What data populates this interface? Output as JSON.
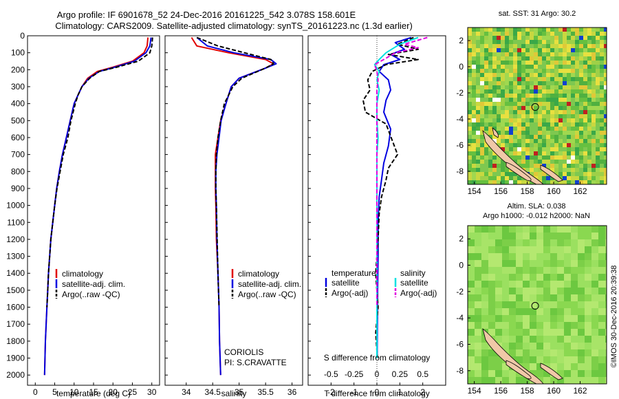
{
  "header": {
    "line1": "Argo profile: IF 6901678_52 24-Dec-2016 20161225_542 3.078S 158.601E",
    "line2": "Climatology: CARS2009. Satellite-adjusted climatology: synTS_20161223.nc (1.3d earlier)"
  },
  "side_stamp": "©IMOS 30-Dec-2016 20:39:38",
  "colors": {
    "climatology": "#e00000",
    "satellite": "#0000e0",
    "argo": "#000000",
    "sal_satellite": "#00e0e0",
    "sal_argo": "#e000e0",
    "zero_line": "#000000"
  },
  "chart_data": [
    {
      "type": "line",
      "title": "",
      "xlabel": "temperature (deg C)",
      "ylabel": "",
      "xlim": [
        -2,
        32
      ],
      "ylim": [
        2060,
        0
      ],
      "xticks": [
        0,
        5,
        10,
        15,
        20,
        25,
        30
      ],
      "yticks": [
        0,
        100,
        200,
        300,
        400,
        500,
        600,
        700,
        800,
        900,
        1000,
        1100,
        1200,
        1300,
        1400,
        1500,
        1600,
        1700,
        1800,
        1900,
        2000
      ],
      "legend": [
        "climatology",
        "satellite-adj. clim.",
        "Argo(..raw -QC)"
      ],
      "series": [
        {
          "name": "climatology",
          "color": "climatology",
          "dash": "none",
          "points": [
            [
              29.0,
              10
            ],
            [
              28.8,
              60
            ],
            [
              28.0,
              100
            ],
            [
              25.0,
              150
            ],
            [
              20.0,
              185
            ],
            [
              16.0,
              210
            ],
            [
              13.5,
              250
            ],
            [
              12.0,
              300
            ],
            [
              11.0,
              350
            ],
            [
              10.0,
              400
            ],
            [
              9.0,
              500
            ],
            [
              8.0,
              600
            ],
            [
              7.0,
              700
            ],
            [
              6.2,
              800
            ],
            [
              5.5,
              900
            ],
            [
              5.0,
              1000
            ],
            [
              4.5,
              1100
            ],
            [
              4.0,
              1200
            ],
            [
              3.7,
              1300
            ],
            [
              3.4,
              1400
            ],
            [
              3.2,
              1500
            ],
            [
              3.0,
              1600
            ],
            [
              2.8,
              1700
            ],
            [
              2.6,
              1800
            ],
            [
              2.5,
              1900
            ],
            [
              2.4,
              2000
            ]
          ]
        },
        {
          "name": "satellite-adj. clim.",
          "color": "satellite",
          "dash": "none",
          "points": [
            [
              29.8,
              10
            ],
            [
              29.5,
              60
            ],
            [
              28.5,
              100
            ],
            [
              25.5,
              150
            ],
            [
              20.5,
              185
            ],
            [
              16.5,
              210
            ],
            [
              13.8,
              250
            ],
            [
              12.0,
              300
            ],
            [
              11.0,
              350
            ],
            [
              10.0,
              400
            ],
            [
              9.0,
              500
            ],
            [
              8.0,
              600
            ],
            [
              7.0,
              700
            ],
            [
              6.2,
              800
            ],
            [
              5.5,
              900
            ],
            [
              5.0,
              1000
            ],
            [
              4.5,
              1100
            ],
            [
              4.0,
              1200
            ],
            [
              3.7,
              1300
            ],
            [
              3.4,
              1400
            ],
            [
              3.2,
              1500
            ],
            [
              3.0,
              1600
            ],
            [
              2.8,
              1700
            ],
            [
              2.6,
              1800
            ],
            [
              2.5,
              1900
            ],
            [
              2.4,
              2000
            ]
          ]
        },
        {
          "name": "Argo(..raw -QC)",
          "color": "argo",
          "dash": "6,3",
          "points": [
            [
              30.2,
              10
            ],
            [
              30.0,
              60
            ],
            [
              29.5,
              100
            ],
            [
              26.5,
              150
            ],
            [
              21.0,
              185
            ],
            [
              16.5,
              210
            ],
            [
              14.0,
              250
            ],
            [
              12.0,
              300
            ],
            [
              11.0,
              350
            ],
            [
              10.3,
              400
            ],
            [
              9.2,
              500
            ],
            [
              8.4,
              600
            ],
            [
              7.2,
              700
            ],
            [
              6.4,
              800
            ],
            [
              5.6,
              900
            ],
            [
              5.0,
              1000
            ],
            [
              4.5,
              1100
            ],
            [
              4.0,
              1200
            ],
            [
              3.7,
              1300
            ],
            [
              3.4,
              1400
            ],
            [
              3.2,
              1500
            ],
            [
              3.0,
              1600
            ]
          ]
        }
      ]
    },
    {
      "type": "line",
      "title": "",
      "xlabel": "salinity",
      "ylabel": "",
      "xlim": [
        33.6,
        36.2
      ],
      "ylim": [
        2060,
        0
      ],
      "xticks": [
        34,
        34.5,
        35,
        35.5,
        36
      ],
      "xticklabels": [
        "34",
        "34.5",
        "35",
        "35.5",
        "36"
      ],
      "legend": [
        "climatology",
        "satellite-adj. clim.",
        "Argo(..raw -QC)"
      ],
      "annotations": [
        "CORIOLIS",
        "PI: S.CRAVATTE"
      ],
      "series": [
        {
          "name": "climatology",
          "color": "climatology",
          "dash": "none",
          "points": [
            [
              34.1,
              10
            ],
            [
              34.2,
              60
            ],
            [
              34.8,
              100
            ],
            [
              35.5,
              140
            ],
            [
              35.65,
              165
            ],
            [
              35.5,
              190
            ],
            [
              35.0,
              250
            ],
            [
              34.85,
              300
            ],
            [
              34.75,
              400
            ],
            [
              34.65,
              500
            ],
            [
              34.6,
              600
            ],
            [
              34.55,
              700
            ],
            [
              34.55,
              800
            ],
            [
              34.55,
              900
            ],
            [
              34.56,
              1000
            ],
            [
              34.57,
              1200
            ],
            [
              34.6,
              1400
            ],
            [
              34.62,
              1600
            ],
            [
              34.63,
              1800
            ],
            [
              34.65,
              2000
            ]
          ]
        },
        {
          "name": "satellite-adj. clim.",
          "color": "satellite",
          "dash": "none",
          "points": [
            [
              34.2,
              10
            ],
            [
              34.4,
              60
            ],
            [
              34.9,
              100
            ],
            [
              35.6,
              140
            ],
            [
              35.7,
              165
            ],
            [
              35.5,
              190
            ],
            [
              35.0,
              250
            ],
            [
              34.85,
              300
            ],
            [
              34.75,
              400
            ],
            [
              34.66,
              500
            ],
            [
              34.62,
              600
            ],
            [
              34.58,
              700
            ],
            [
              34.56,
              800
            ],
            [
              34.56,
              900
            ],
            [
              34.57,
              1000
            ],
            [
              34.58,
              1200
            ],
            [
              34.6,
              1400
            ],
            [
              34.62,
              1600
            ],
            [
              34.63,
              1800
            ],
            [
              34.65,
              2000
            ]
          ]
        },
        {
          "name": "Argo(..raw -QC)",
          "color": "argo",
          "dash": "6,3",
          "points": [
            [
              34.2,
              10
            ],
            [
              34.6,
              60
            ],
            [
              35.1,
              100
            ],
            [
              35.6,
              140
            ],
            [
              35.65,
              165
            ],
            [
              35.5,
              190
            ],
            [
              35.05,
              250
            ],
            [
              34.88,
              300
            ],
            [
              34.72,
              400
            ],
            [
              34.65,
              500
            ],
            [
              34.6,
              600
            ],
            [
              34.57,
              700
            ],
            [
              34.56,
              800
            ],
            [
              34.56,
              900
            ],
            [
              34.57,
              1000
            ],
            [
              34.6,
              1400
            ],
            [
              34.62,
              1600
            ]
          ]
        }
      ]
    },
    {
      "type": "line",
      "title": "",
      "xlabel": "T difference from climatology",
      "secondary_xlabel": "S difference from climatology",
      "xlim": [
        -3,
        3
      ],
      "ylim": [
        2060,
        0
      ],
      "xticks": [
        -2,
        -1,
        0,
        1,
        2
      ],
      "xticklabels": [
        "-2",
        "-1",
        "0",
        "1",
        "2"
      ],
      "secondary_xticks": [
        -2,
        -1,
        0,
        1,
        2
      ],
      "secondary_xticklabels": [
        "-0.5",
        "-0.25",
        "0",
        "0.25",
        "0.5"
      ],
      "legend_temperature": [
        "temperature",
        "satellite",
        "Argo(-adj)"
      ],
      "legend_salinity": [
        "salinity",
        "satellite",
        "Argo(-adj)"
      ],
      "series": [
        {
          "name": "temperature satellite",
          "color": "satellite",
          "dash": "none",
          "points": [
            [
              1.5,
              10
            ],
            [
              0.8,
              40
            ],
            [
              1.2,
              80
            ],
            [
              0.6,
              110
            ],
            [
              1.0,
              140
            ],
            [
              0.3,
              170
            ],
            [
              0.1,
              210
            ],
            [
              0.5,
              260
            ],
            [
              0.6,
              320
            ],
            [
              0.4,
              380
            ],
            [
              0.3,
              450
            ],
            [
              0.6,
              550
            ],
            [
              0.5,
              650
            ],
            [
              0.3,
              750
            ],
            [
              0.2,
              850
            ],
            [
              0.1,
              950
            ],
            [
              0.05,
              1100
            ],
            [
              0.05,
              1300
            ],
            [
              0.03,
              1500
            ],
            [
              0.02,
              1700
            ],
            [
              0.01,
              1900
            ]
          ]
        },
        {
          "name": "temperature Argo(-adj)",
          "color": "argo",
          "dash": "6,3",
          "points": [
            [
              1.6,
              10
            ],
            [
              0.9,
              50
            ],
            [
              1.8,
              80
            ],
            [
              0.5,
              110
            ],
            [
              1.8,
              140
            ],
            [
              0.4,
              170
            ],
            [
              -0.2,
              210
            ],
            [
              -0.4,
              260
            ],
            [
              -0.3,
              320
            ],
            [
              -0.6,
              380
            ],
            [
              -0.5,
              450
            ],
            [
              0.4,
              520
            ],
            [
              0.9,
              700
            ],
            [
              0.5,
              780
            ],
            [
              0.4,
              850
            ],
            [
              0.2,
              950
            ],
            [
              0.1,
              1050
            ],
            [
              0.05,
              1200
            ],
            [
              -0.05,
              1400
            ],
            [
              0.05,
              1600
            ],
            [
              -0.05,
              1750
            ],
            [
              0.02,
              1900
            ]
          ]
        },
        {
          "name": "salinity satellite",
          "color": "sal_satellite",
          "dash": "none",
          "points": [
            [
              1.8,
              10
            ],
            [
              1.0,
              50
            ],
            [
              0.4,
              100
            ],
            [
              0.1,
              140
            ],
            [
              -0.1,
              170
            ],
            [
              0.1,
              210
            ],
            [
              0.0,
              260
            ],
            [
              0.1,
              320
            ],
            [
              0.0,
              400
            ],
            [
              0.0,
              500
            ],
            [
              0.05,
              600
            ],
            [
              0.0,
              700
            ],
            [
              0.0,
              800
            ],
            [
              0.0,
              900
            ],
            [
              0.0,
              1100
            ],
            [
              0.0,
              1300
            ],
            [
              0.0,
              1500
            ],
            [
              0.0,
              1700
            ],
            [
              0.0,
              1900
            ]
          ]
        },
        {
          "name": "salinity Argo(-adj)",
          "color": "sal_argo",
          "dash": "6,3",
          "points": [
            [
              2.2,
              10
            ],
            [
              1.2,
              50
            ],
            [
              1.8,
              70
            ],
            [
              0.8,
              100
            ],
            [
              0.3,
              140
            ],
            [
              -0.1,
              170
            ],
            [
              0.0,
              210
            ],
            [
              0.05,
              260
            ],
            [
              0.0,
              320
            ],
            [
              0.0,
              400
            ],
            [
              0.0,
              500
            ],
            [
              0.0,
              600
            ],
            [
              0.0,
              700
            ],
            [
              0.0,
              800
            ],
            [
              0.0,
              900
            ],
            [
              0.0,
              1000
            ],
            [
              0.0,
              1200
            ],
            [
              0.0,
              1400
            ],
            [
              0.0,
              1600
            ]
          ]
        }
      ]
    },
    {
      "type": "heatmap",
      "title": "sat. SST: 31  Argo: 30.2",
      "xlim": [
        153.5,
        164
      ],
      "ylim": [
        -9,
        3
      ],
      "xticks": [
        154,
        156,
        158,
        160,
        162
      ],
      "yticks": [
        2,
        0,
        -2,
        -4,
        -6,
        -8
      ],
      "marker": [
        158.6,
        -3.08
      ]
    },
    {
      "type": "heatmap",
      "title": "Altim. SLA: 0.038",
      "subtitle": "Argo h1000: -0.012 h2000: NaN",
      "xlim": [
        153.5,
        164
      ],
      "ylim": [
        -9,
        3
      ],
      "xticks": [
        154,
        156,
        158,
        160,
        162
      ],
      "yticks": [
        2,
        0,
        -2,
        -4,
        -6,
        -8
      ],
      "marker": [
        158.6,
        -3.08
      ]
    }
  ]
}
